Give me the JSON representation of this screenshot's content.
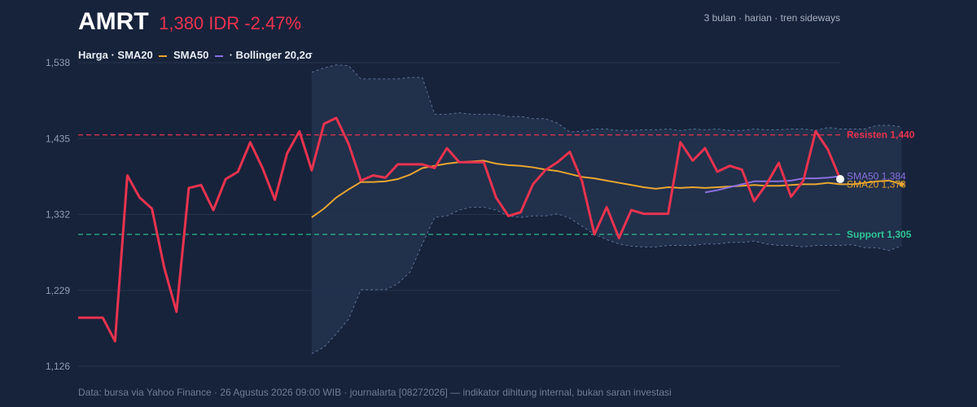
{
  "header": {
    "ticker": "AMRT",
    "price_change": "1,380 IDR -2.47%",
    "summary": "3 bulan · harian · tren sideways"
  },
  "legend": {
    "part1": "Harga · SMA20",
    "part2": "SMA50",
    "part3": "· Bollinger 20,2σ"
  },
  "footer": {
    "text": "Data: bursa via Yahoo Finance · 26 Agustus 2026 09:00 WIB · journalarta [08272026] — indikator dihitung internal, bukan saran investasi"
  },
  "colors": {
    "background": "#17233b",
    "price": "#e8334f",
    "sma20": "#e8a531",
    "sma50": "#8a6fde",
    "bollinger": "#5a6f95",
    "resistance": "#e8334f",
    "support": "#2fc596"
  },
  "chart_data": {
    "type": "line",
    "y_ticks": [
      "1,538",
      "1,435",
      "1,332",
      "1,229",
      "1,126"
    ],
    "ylim": [
      1126,
      1538
    ],
    "grid": true,
    "legend_position": "top-left",
    "levels": [
      {
        "name": "resistance",
        "label": "Resisten 1,440",
        "value": 1440,
        "color": "#e8334f"
      },
      {
        "name": "support",
        "label": "Support 1,305",
        "value": 1305,
        "color": "#2fc596"
      }
    ],
    "end_labels": [
      {
        "name": "sma50",
        "label": "SMA50 1,384",
        "value": 1384,
        "color": "#8a6fde"
      },
      {
        "name": "sma20",
        "label": "SMA20 1,373",
        "value": 1373,
        "color": "#e8a531"
      }
    ],
    "series": [
      {
        "name": "Harga",
        "color": "#e8334f",
        "start_index": 0,
        "values": [
          1192,
          1192,
          1192,
          1160,
          1385,
          1355,
          1340,
          1260,
          1200,
          1368,
          1372,
          1338,
          1380,
          1390,
          1430,
          1395,
          1352,
          1415,
          1445,
          1392,
          1455,
          1463,
          1428,
          1378,
          1385,
          1382,
          1400,
          1400,
          1400,
          1395,
          1422,
          1403,
          1403,
          1403,
          1355,
          1330,
          1335,
          1373,
          1392,
          1403,
          1417,
          1377,
          1305,
          1342,
          1300,
          1338,
          1333,
          1333,
          1333,
          1430,
          1405,
          1422,
          1390,
          1398,
          1393,
          1350,
          1373,
          1402,
          1356,
          1378,
          1445,
          1420,
          1380
        ]
      },
      {
        "name": "SMA20",
        "color": "#e8a531",
        "start_index": 19,
        "values": [
          1328,
          1340,
          1355,
          1366,
          1376,
          1376,
          1377,
          1380,
          1386,
          1395,
          1398,
          1401,
          1403,
          1404,
          1405,
          1401,
          1399,
          1398,
          1396,
          1393,
          1391,
          1387,
          1383,
          1381,
          1378,
          1375,
          1372,
          1369,
          1367,
          1369,
          1368,
          1369,
          1368,
          1369,
          1370,
          1371,
          1372,
          1371,
          1371,
          1372,
          1373,
          1373,
          1375,
          1373,
          1373,
          1375,
          1377,
          1378,
          1373
        ]
      },
      {
        "name": "SMA50",
        "color": "#8a6fde",
        "start_index": 51,
        "values": [
          1362,
          1365,
          1369,
          1373,
          1377,
          1377,
          1377,
          1378,
          1381,
          1381,
          1382,
          1384
        ]
      },
      {
        "name": "Bollinger upper",
        "color": "#5a6f95",
        "start_index": 19,
        "values": [
          1525,
          1531,
          1535,
          1534,
          1516,
          1516,
          1516,
          1516,
          1518,
          1518,
          1468,
          1468,
          1470,
          1468,
          1468,
          1468,
          1465,
          1465,
          1462,
          1462,
          1456,
          1444,
          1445,
          1448,
          1448,
          1446,
          1446,
          1447,
          1447,
          1448,
          1446,
          1448,
          1447,
          1448,
          1446,
          1446,
          1448,
          1447,
          1447,
          1448,
          1448,
          1446,
          1450,
          1448,
          1448,
          1448,
          1453,
          1453,
          1451
        ]
      },
      {
        "name": "Bollinger lower",
        "color": "#5a6f95",
        "start_index": 19,
        "values": [
          1143,
          1152,
          1170,
          1190,
          1230,
          1230,
          1230,
          1238,
          1254,
          1292,
          1328,
          1330,
          1338,
          1342,
          1342,
          1338,
          1330,
          1328,
          1330,
          1330,
          1333,
          1327,
          1316,
          1305,
          1298,
          1292,
          1289,
          1288,
          1288,
          1290,
          1290,
          1290,
          1292,
          1292,
          1294,
          1294,
          1296,
          1292,
          1290,
          1290,
          1288,
          1290,
          1290,
          1290,
          1291,
          1287,
          1287,
          1283,
          1290
        ]
      }
    ]
  }
}
